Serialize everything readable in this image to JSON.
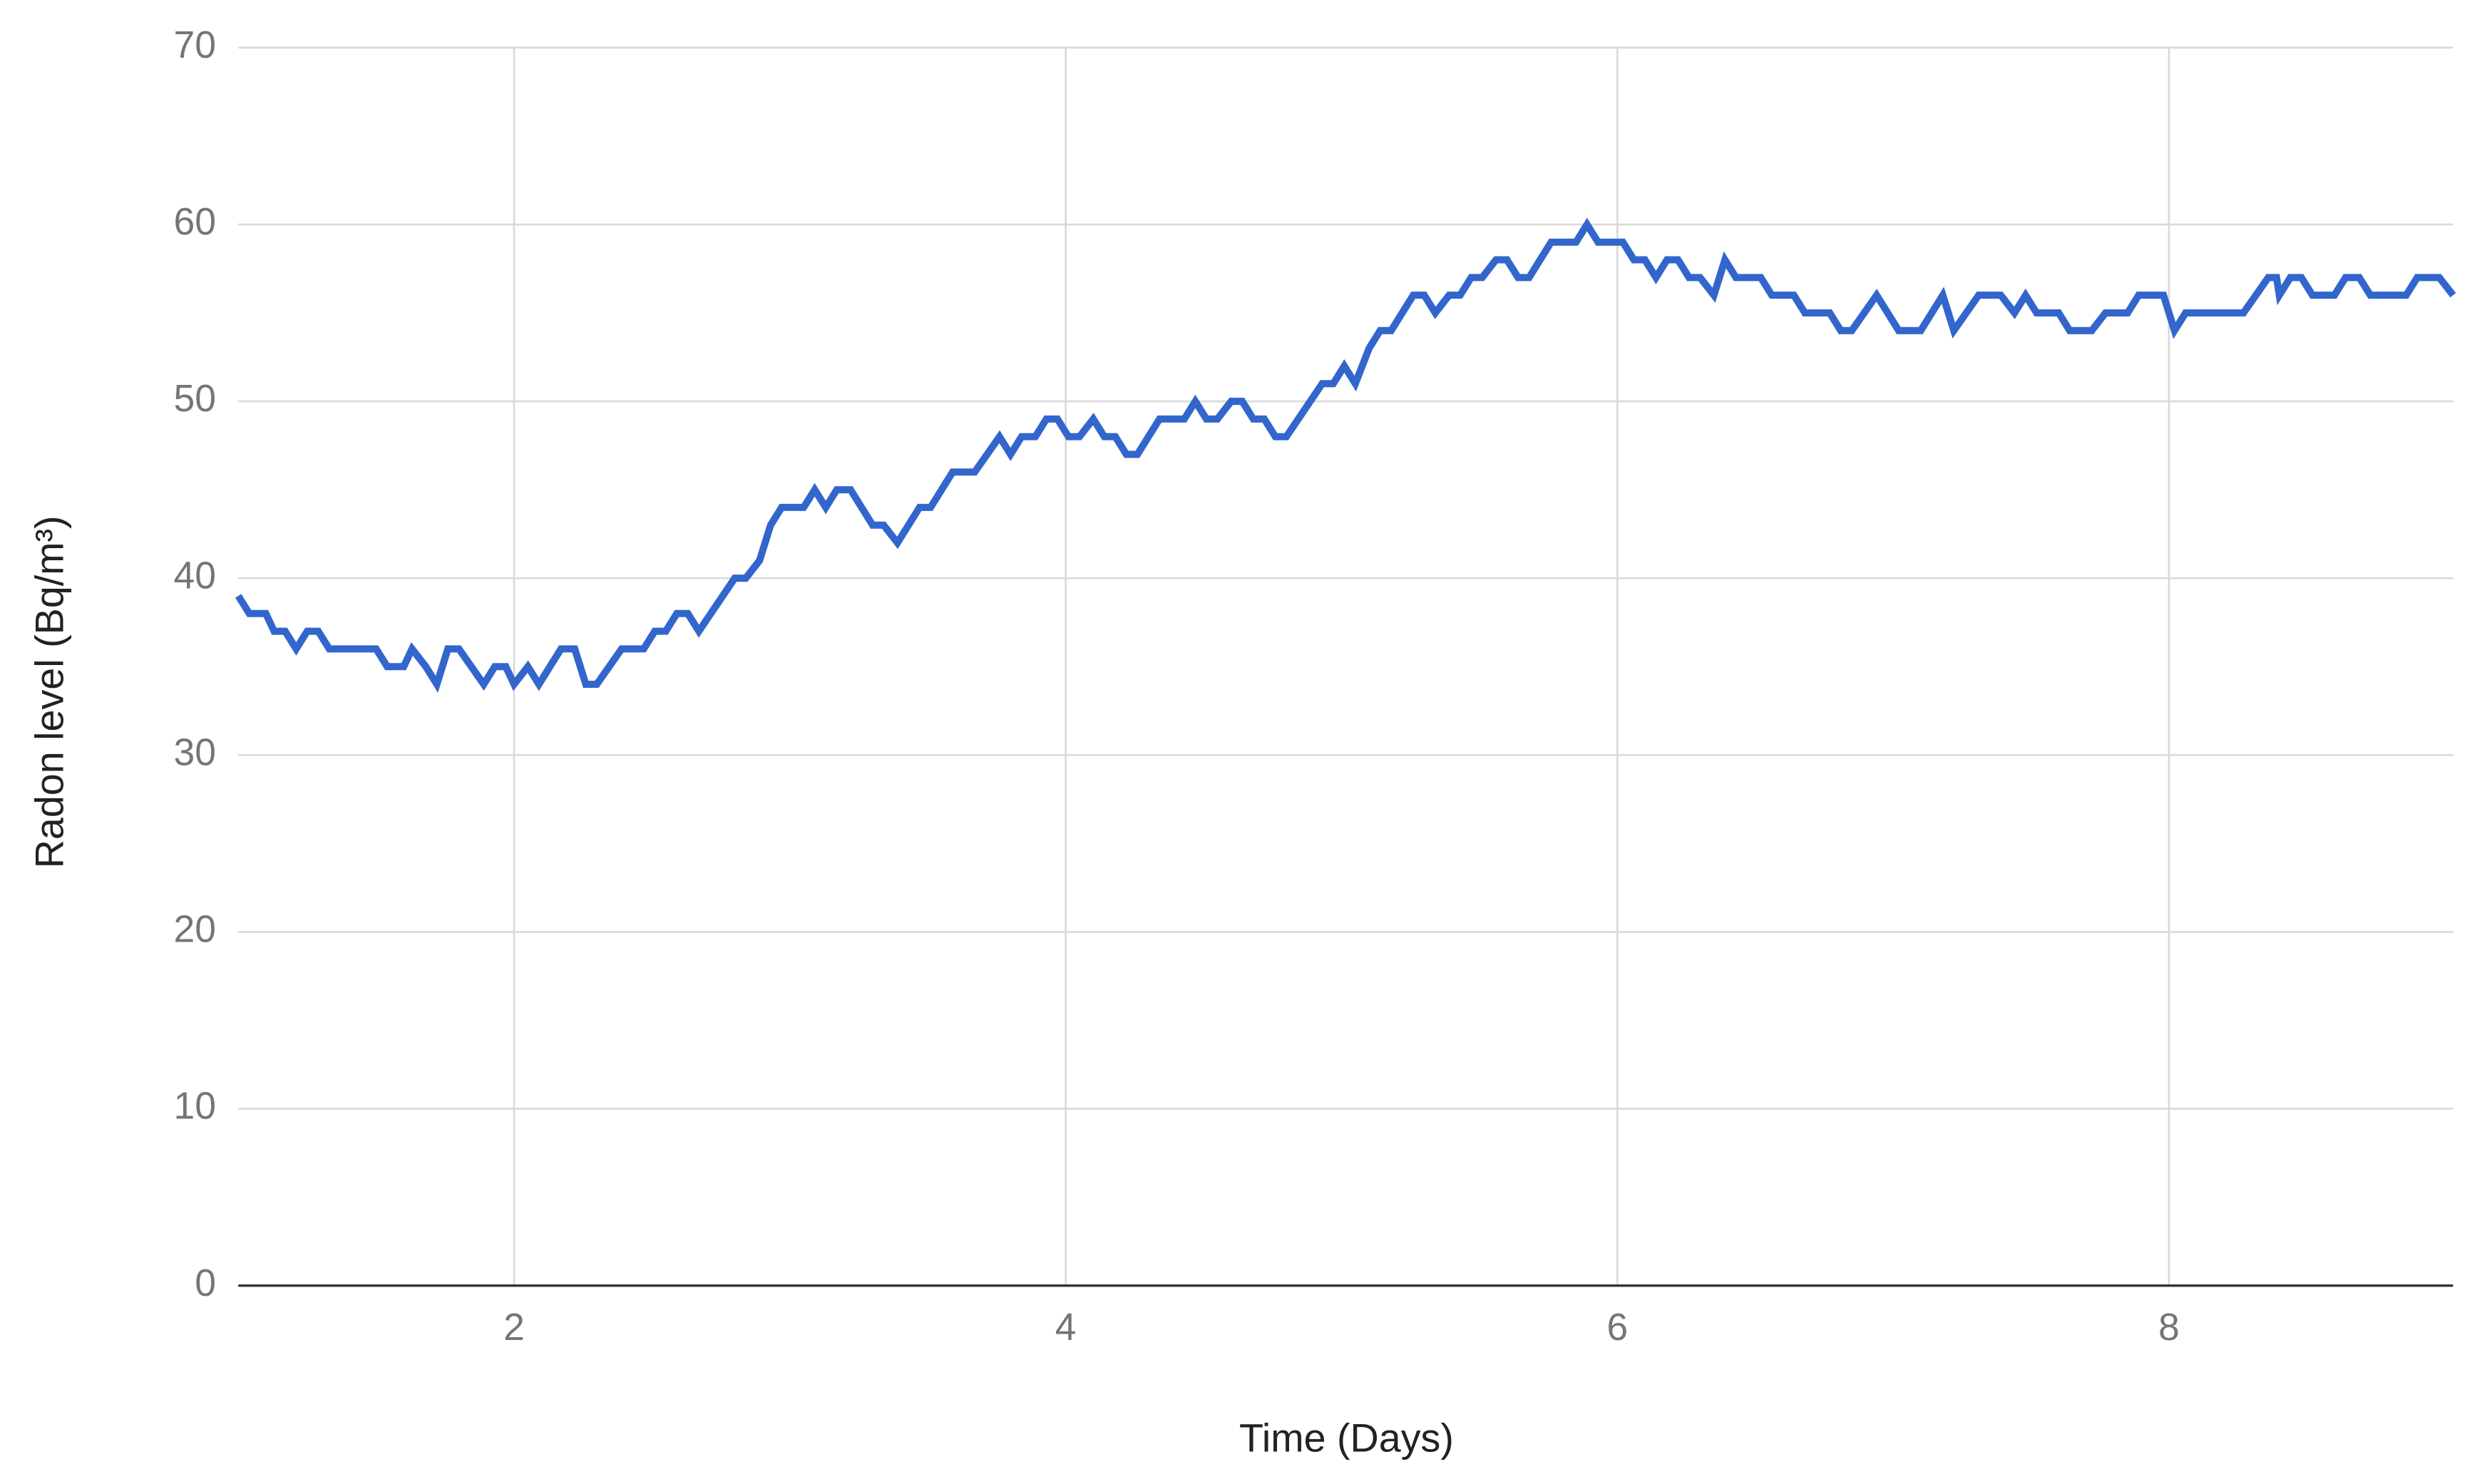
{
  "chart_data": {
    "type": "line",
    "x_label": "Time (Days)",
    "y_label": "Radon level (Bq/m³)",
    "color": "#3366cc",
    "x": [
      1.0,
      1.04,
      1.1,
      1.13,
      1.17,
      1.21,
      1.25,
      1.29,
      1.33,
      1.5,
      1.54,
      1.6,
      1.63,
      1.68,
      1.72,
      1.76,
      1.8,
      1.89,
      1.93,
      1.97,
      2.0,
      2.05,
      2.09,
      2.17,
      2.22,
      2.26,
      2.3,
      2.39,
      2.47,
      2.51,
      2.55,
      2.59,
      2.63,
      2.67,
      2.8,
      2.84,
      2.89,
      2.93,
      2.97,
      3.05,
      3.09,
      3.13,
      3.17,
      3.22,
      3.3,
      3.34,
      3.39,
      3.47,
      3.51,
      3.59,
      3.67,
      3.76,
      3.8,
      3.84,
      3.89,
      3.93,
      3.97,
      4.01,
      4.05,
      4.1,
      4.14,
      4.18,
      4.22,
      4.26,
      4.34,
      4.43,
      4.47,
      4.51,
      4.55,
      4.6,
      4.64,
      4.68,
      4.72,
      4.76,
      4.8,
      4.93,
      4.97,
      5.01,
      5.05,
      5.1,
      5.14,
      5.18,
      5.26,
      5.3,
      5.34,
      5.39,
      5.43,
      5.47,
      5.51,
      5.56,
      5.6,
      5.64,
      5.68,
      5.76,
      5.85,
      5.89,
      5.93,
      6.02,
      6.06,
      6.1,
      6.14,
      6.18,
      6.22,
      6.26,
      6.3,
      6.35,
      6.39,
      6.43,
      6.52,
      6.56,
      6.64,
      6.68,
      6.77,
      6.81,
      6.85,
      6.94,
      7.02,
      7.1,
      7.18,
      7.22,
      7.31,
      7.39,
      7.44,
      7.48,
      7.52,
      7.6,
      7.64,
      7.72,
      7.77,
      7.85,
      7.89,
      7.98,
      8.02,
      8.06,
      8.27,
      8.36,
      8.39,
      8.4,
      8.44,
      8.48,
      8.52,
      8.6,
      8.64,
      8.69,
      8.73,
      8.86,
      8.9,
      8.98,
      9.03
    ],
    "values": [
      39,
      38,
      38,
      37,
      37,
      36,
      37,
      37,
      36,
      36,
      35,
      35,
      36,
      35,
      34,
      36,
      36,
      34,
      35,
      35,
      34,
      35,
      34,
      36,
      36,
      34,
      34,
      36,
      36,
      37,
      37,
      38,
      38,
      37,
      40,
      40,
      41,
      43,
      44,
      44,
      45,
      44,
      45,
      45,
      43,
      43,
      42,
      44,
      44,
      46,
      46,
      48,
      47,
      48,
      48,
      49,
      49,
      48,
      48,
      49,
      48,
      48,
      47,
      47,
      49,
      49,
      50,
      49,
      49,
      50,
      50,
      49,
      49,
      48,
      48,
      51,
      51,
      52,
      51,
      53,
      54,
      54,
      56,
      56,
      55,
      56,
      56,
      57,
      57,
      58,
      58,
      57,
      57,
      59,
      59,
      60,
      59,
      59,
      58,
      58,
      57,
      58,
      58,
      57,
      57,
      56,
      58,
      57,
      57,
      56,
      56,
      55,
      55,
      54,
      54,
      56,
      54,
      54,
      56,
      54,
      56,
      56,
      55,
      56,
      55,
      55,
      54,
      54,
      55,
      55,
      56,
      56,
      54,
      55,
      55,
      57,
      57,
      56,
      57,
      57,
      56,
      56,
      57,
      57,
      56,
      56,
      57,
      57,
      56
    ],
    "xlim": [
      1,
      9.03
    ],
    "ylim": [
      0,
      70
    ],
    "xticks": [
      2,
      4,
      6,
      8
    ],
    "yticks": [
      0,
      10,
      20,
      30,
      40,
      50,
      60,
      70
    ],
    "grid": true
  }
}
